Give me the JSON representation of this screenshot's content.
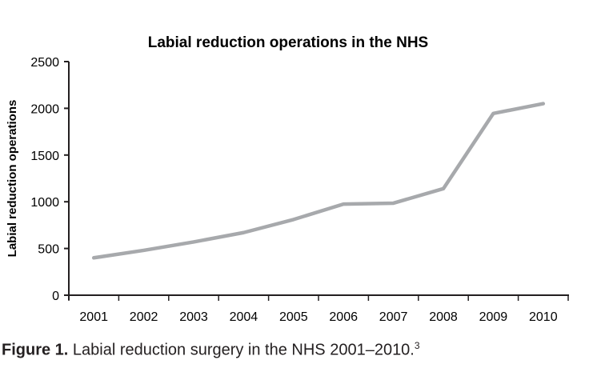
{
  "chart_data": {
    "type": "line",
    "title": "Labial reduction operations in the NHS",
    "xlabel": "",
    "ylabel": "Labial reduction operations",
    "categories": [
      "2001",
      "2002",
      "2003",
      "2004",
      "2005",
      "2006",
      "2007",
      "2008",
      "2009",
      "2010"
    ],
    "series": [
      {
        "name": "Labial reduction operations",
        "values": [
          400,
          480,
          570,
          670,
          810,
          975,
          985,
          1140,
          1945,
          2050
        ],
        "color": "#a7a9ac"
      }
    ],
    "ylim": [
      0,
      2500
    ],
    "yticks": [
      0,
      500,
      1000,
      1500,
      2000,
      2500
    ],
    "grid": false,
    "legend": "none"
  },
  "caption": {
    "label": "Figure 1.",
    "text": "Labial  reduction surgery in the NHS 2001–2010.",
    "ref": "3"
  }
}
